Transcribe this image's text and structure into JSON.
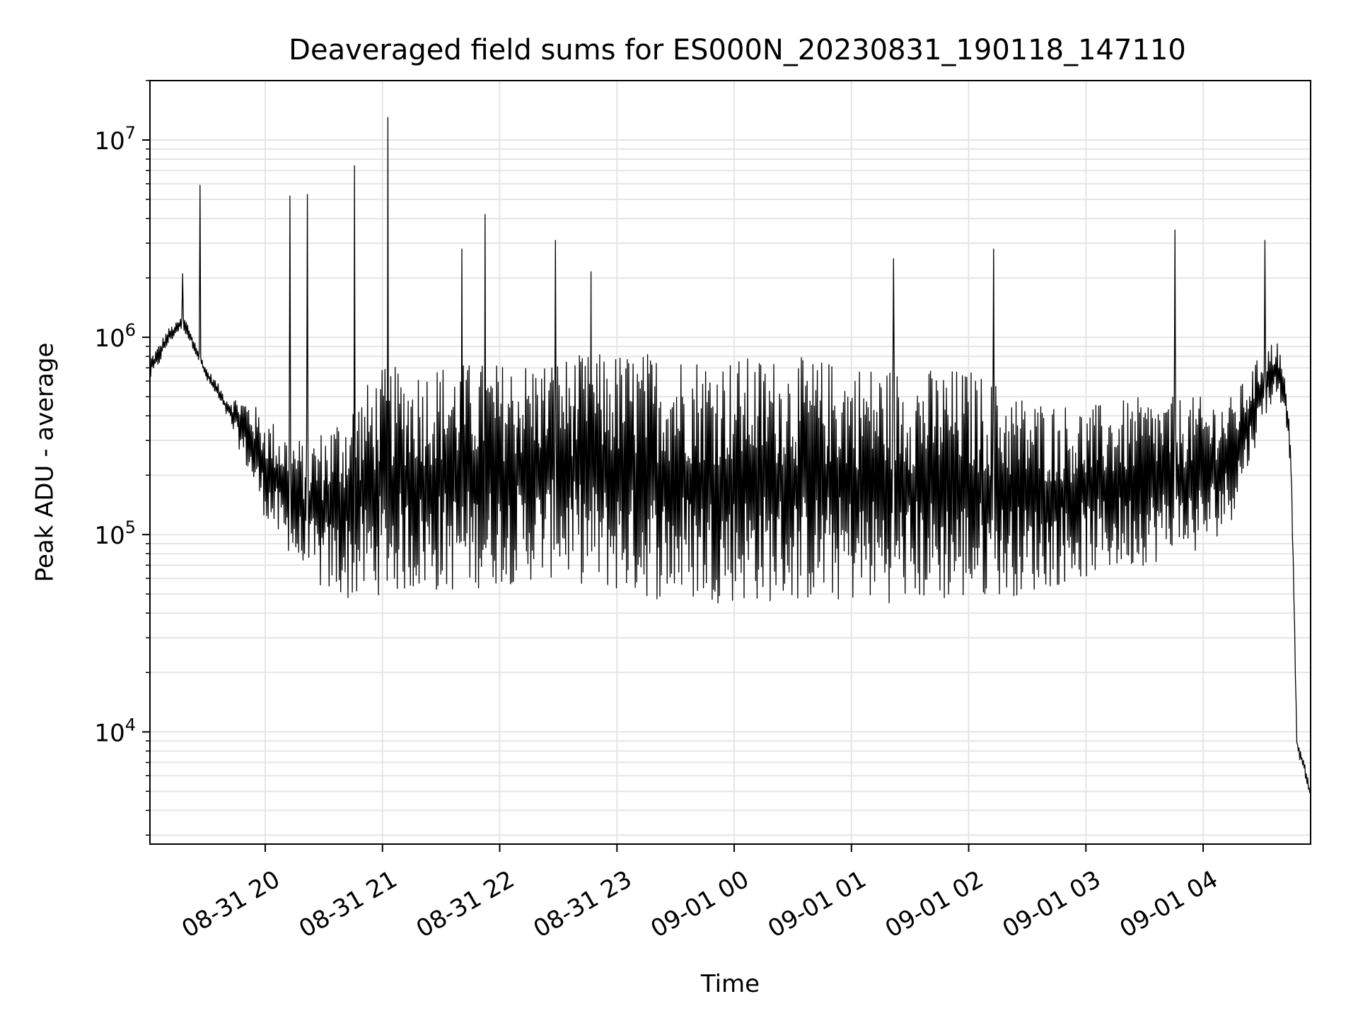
{
  "chart_data": {
    "type": "line",
    "title": "Deaveraged field sums for ES000N_20230831_190118_147110",
    "xlabel": "Time",
    "ylabel": "Peak ADU - average",
    "y_scale": "log",
    "ylim": [
      2700,
      20000000
    ],
    "xlim": [
      "2023-08-31 19:01",
      "2023-09-01 04:55"
    ],
    "grid": true,
    "line_color": "#000000",
    "grid_color": "#e5e5e5",
    "x_ticks": [
      {
        "value": "2023-08-31 20:00",
        "label": "08-31 20"
      },
      {
        "value": "2023-08-31 21:00",
        "label": "08-31 21"
      },
      {
        "value": "2023-08-31 22:00",
        "label": "08-31 22"
      },
      {
        "value": "2023-08-31 23:00",
        "label": "08-31 23"
      },
      {
        "value": "2023-09-01 00:00",
        "label": "09-01 00"
      },
      {
        "value": "2023-09-01 01:00",
        "label": "09-01 01"
      },
      {
        "value": "2023-09-01 02:00",
        "label": "09-01 02"
      },
      {
        "value": "2023-09-01 03:00",
        "label": "09-01 03"
      },
      {
        "value": "2023-09-01 04:00",
        "label": "09-01 04"
      }
    ],
    "y_ticks": [
      {
        "value": 10000,
        "base": "10",
        "exp": "4"
      },
      {
        "value": 100000,
        "base": "10",
        "exp": "5"
      },
      {
        "value": 1000000,
        "base": "10",
        "exp": "6"
      },
      {
        "value": 10000000,
        "base": "10",
        "exp": "7"
      }
    ],
    "series": [
      {
        "name": "",
        "x": [
          "2023-08-31 19:01",
          "2023-08-31 19:05",
          "2023-08-31 19:10",
          "2023-08-31 19:15",
          "2023-08-31 19:18",
          "2023-08-31 19:20",
          "2023-08-31 19:25",
          "2023-08-31 19:30",
          "2023-08-31 19:35",
          "2023-08-31 19:40",
          "2023-08-31 19:45",
          "2023-08-31 19:50",
          "2023-08-31 19:55",
          "2023-08-31 20:00",
          "2023-08-31 20:10",
          "2023-08-31 20:20",
          "2023-08-31 20:30",
          "2023-08-31 20:45",
          "2023-08-31 21:00",
          "2023-08-31 21:30",
          "2023-08-31 22:00",
          "2023-08-31 22:30",
          "2023-08-31 23:00",
          "2023-08-31 23:30",
          "2023-09-01 00:00",
          "2023-09-01 00:30",
          "2023-09-01 01:00",
          "2023-09-01 01:30",
          "2023-09-01 02:00",
          "2023-09-01 02:30",
          "2023-09-01 03:00",
          "2023-09-01 03:30",
          "2023-09-01 04:00",
          "2023-09-01 04:15",
          "2023-09-01 04:25",
          "2023-09-01 04:32",
          "2023-09-01 04:38",
          "2023-09-01 04:42",
          "2023-09-01 04:45",
          "2023-09-01 04:48",
          "2023-09-01 04:52",
          "2023-09-01 04:55"
        ],
        "y": [
          600000,
          700000,
          900000,
          1050000,
          1100000,
          1000000,
          800000,
          600000,
          500000,
          400000,
          300000,
          220000,
          160000,
          120000,
          80000,
          60000,
          50000,
          45000,
          50000,
          50000,
          55000,
          60000,
          50000,
          45000,
          45000,
          45000,
          45000,
          45000,
          45000,
          50000,
          60000,
          70000,
          80000,
          120000,
          250000,
          400000,
          500000,
          420000,
          200000,
          8000,
          6000,
          4500
        ],
        "y_high": [
          800000,
          900000,
          1100000,
          1200000,
          1300000,
          1200000,
          900000,
          700000,
          600000,
          500000,
          500000,
          500000,
          450000,
          400000,
          350000,
          300000,
          350000,
          500000,
          700000,
          750000,
          750000,
          800000,
          850000,
          850000,
          800000,
          800000,
          750000,
          700000,
          700000,
          500000,
          450000,
          500000,
          500000,
          500000,
          700000,
          900000,
          1000000,
          600000,
          300000,
          9000,
          7000,
          5000
        ],
        "spikes": [
          {
            "x": "2023-08-31 19:18",
            "y": 2100000
          },
          {
            "x": "2023-08-31 19:27",
            "y": 5900000
          },
          {
            "x": "2023-08-31 20:13",
            "y": 5200000
          },
          {
            "x": "2023-08-31 20:22",
            "y": 5300000
          },
          {
            "x": "2023-08-31 20:46",
            "y": 7400000
          },
          {
            "x": "2023-08-31 21:03",
            "y": 13000000
          },
          {
            "x": "2023-08-31 21:41",
            "y": 2800000
          },
          {
            "x": "2023-08-31 21:53",
            "y": 4200000
          },
          {
            "x": "2023-08-31 22:29",
            "y": 3100000
          },
          {
            "x": "2023-08-31 22:47",
            "y": 2150000
          },
          {
            "x": "2023-09-01 01:22",
            "y": 2500000
          },
          {
            "x": "2023-09-01 02:13",
            "y": 2800000
          },
          {
            "x": "2023-09-01 03:46",
            "y": 3500000
          },
          {
            "x": "2023-09-01 04:32",
            "y": 3100000
          }
        ]
      }
    ]
  }
}
